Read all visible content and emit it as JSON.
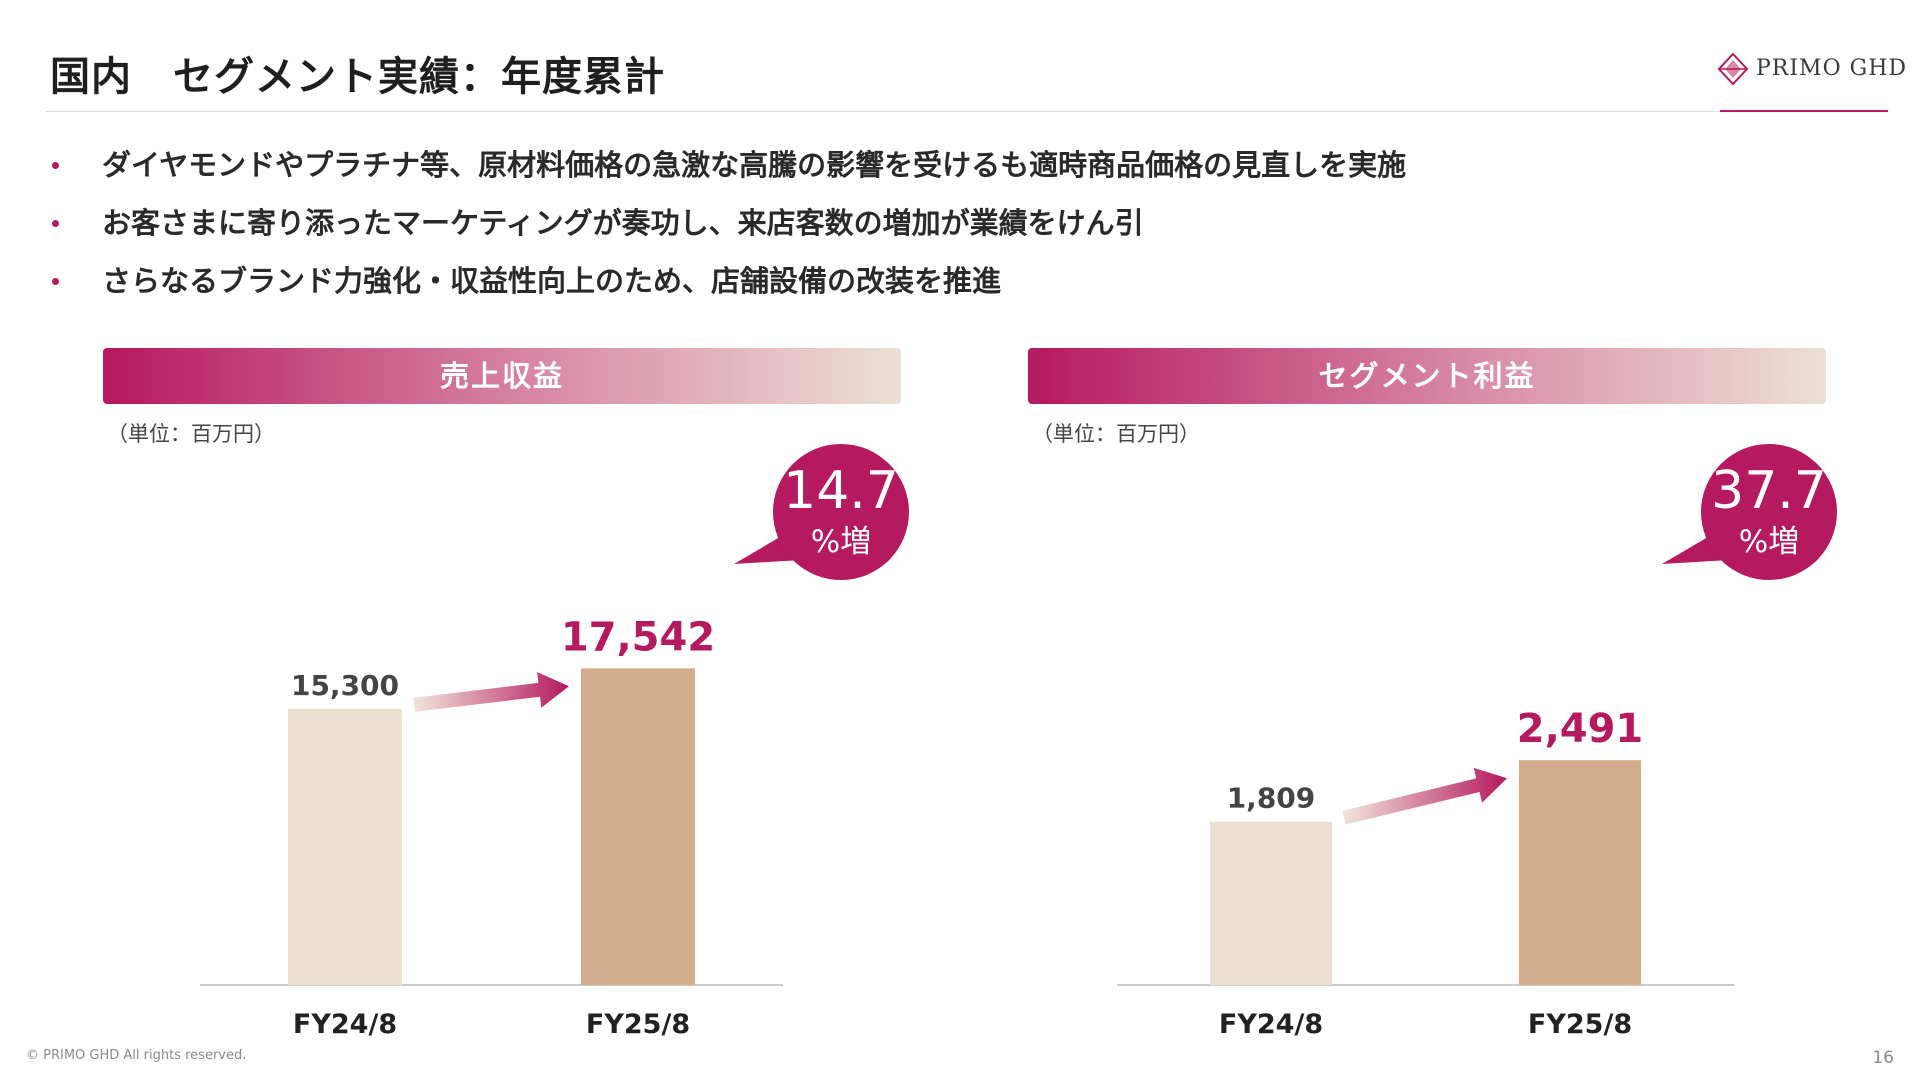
{
  "header": {
    "title": "国内　セグメント実績：年度累計",
    "logo_text": "PRIMO GHD"
  },
  "bullets": [
    "ダイヤモンドやプラチナ等、原材料価格の急激な高騰の影響を受けるも適時商品価格の見直しを実施",
    "お客さまに寄り添ったマーケティングが奏功し、来店客数の増加が業績をけん引",
    "さらなるブランド力強化・収益性向上のため、店舗設備の改装を推進"
  ],
  "colors": {
    "accent": "#b5195e",
    "bar_prev": "#ece0d3",
    "bar_curr": "#d2ae8d",
    "label_prev": "#444444",
    "axis": "#cccccc"
  },
  "chart_data": [
    {
      "type": "bar",
      "title": "売上収益",
      "unit_label": "（単位：百万円）",
      "categories": [
        "FY24/8",
        "FY25/8"
      ],
      "values": [
        15300,
        17542
      ],
      "value_labels": [
        "15,300",
        "17,542"
      ],
      "ylim": [
        0,
        19500
      ],
      "growth": {
        "number": "14.7",
        "suffix": "%増"
      },
      "grid": false,
      "legend": "none"
    },
    {
      "type": "bar",
      "title": "セグメント利益",
      "unit_label": "（単位：百万円）",
      "categories": [
        "FY24/8",
        "FY25/8"
      ],
      "values": [
        1809,
        2491
      ],
      "value_labels": [
        "1,809",
        "2,491"
      ],
      "ylim": [
        0,
        3900
      ],
      "growth": {
        "number": "37.7",
        "suffix": "%増"
      },
      "grid": false,
      "legend": "none"
    }
  ],
  "footer": {
    "copyright": "© PRIMO GHD All rights reserved.",
    "page_number": "16"
  }
}
